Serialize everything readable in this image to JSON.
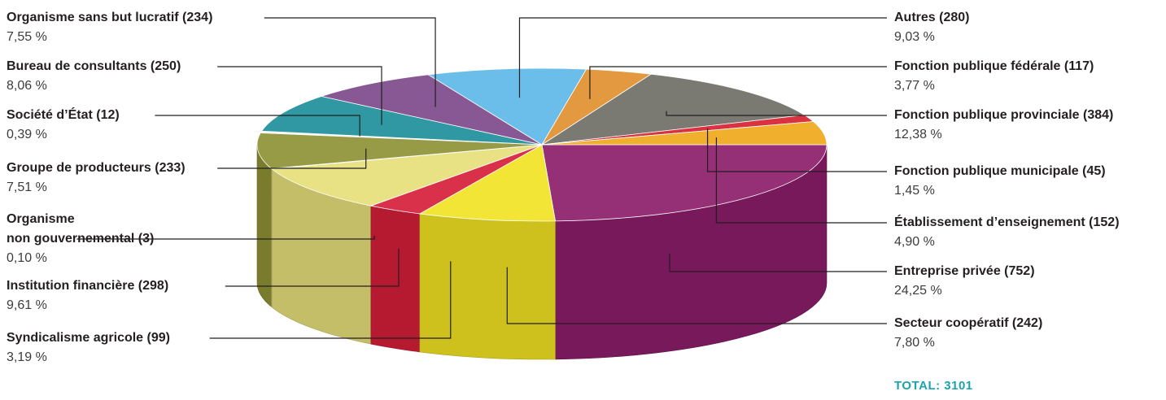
{
  "chart_data": {
    "type": "pie",
    "slices": [
      {
        "label": "Entreprise privée (752)",
        "count": 752,
        "percent": "24,25 %",
        "color": "#8c1d6a"
      },
      {
        "label": "Secteur coopératif (242)",
        "count": 242,
        "percent": "7,80 %",
        "color": "#f2e323"
      },
      {
        "label": "Syndicalisme agricole (99)",
        "count": 99,
        "percent": "3,19 %",
        "color": "#d61f3a"
      },
      {
        "label": "Institution financière (298)",
        "count": 298,
        "percent": "9,61 %",
        "color": "#e6e07a"
      },
      {
        "label": "Organisme\nnon gouvernemental (3)",
        "count": 3,
        "percent": "0,10 %",
        "color": "#d9d07a"
      },
      {
        "label": "Groupe de producteurs (233)",
        "count": 233,
        "percent": "7,51 %",
        "color": "#8f9235"
      },
      {
        "label": "Société d’État (12)",
        "count": 12,
        "percent": "0,39 %",
        "color": "#f4f4f4"
      },
      {
        "label": "Bureau de consultants (250)",
        "count": 250,
        "percent": "8,06 %",
        "color": "#1d8f9a"
      },
      {
        "label": "Organisme sans but lucratif (234)",
        "count": 234,
        "percent": "7,55 %",
        "color": "#7d4a8a"
      },
      {
        "label": "Autres (280)",
        "count": 280,
        "percent": "9,03 %",
        "color": "#5fb8e8"
      },
      {
        "label": "Fonction publique fédérale (117)",
        "count": 117,
        "percent": "3,77 %",
        "color": "#e0902e"
      },
      {
        "label": "Fonction publique provinciale (384)",
        "count": 384,
        "percent": "12,38 %",
        "color": "#6e6e66"
      },
      {
        "label": "Fonction publique municipale (45)",
        "count": 45,
        "percent": "1,45 %",
        "color": "#d82030"
      },
      {
        "label": "Établissement d’enseignement (152)",
        "count": 152,
        "percent": "4,90 %",
        "color": "#f0a81c"
      }
    ],
    "total_label": "TOTAL: 3101"
  }
}
